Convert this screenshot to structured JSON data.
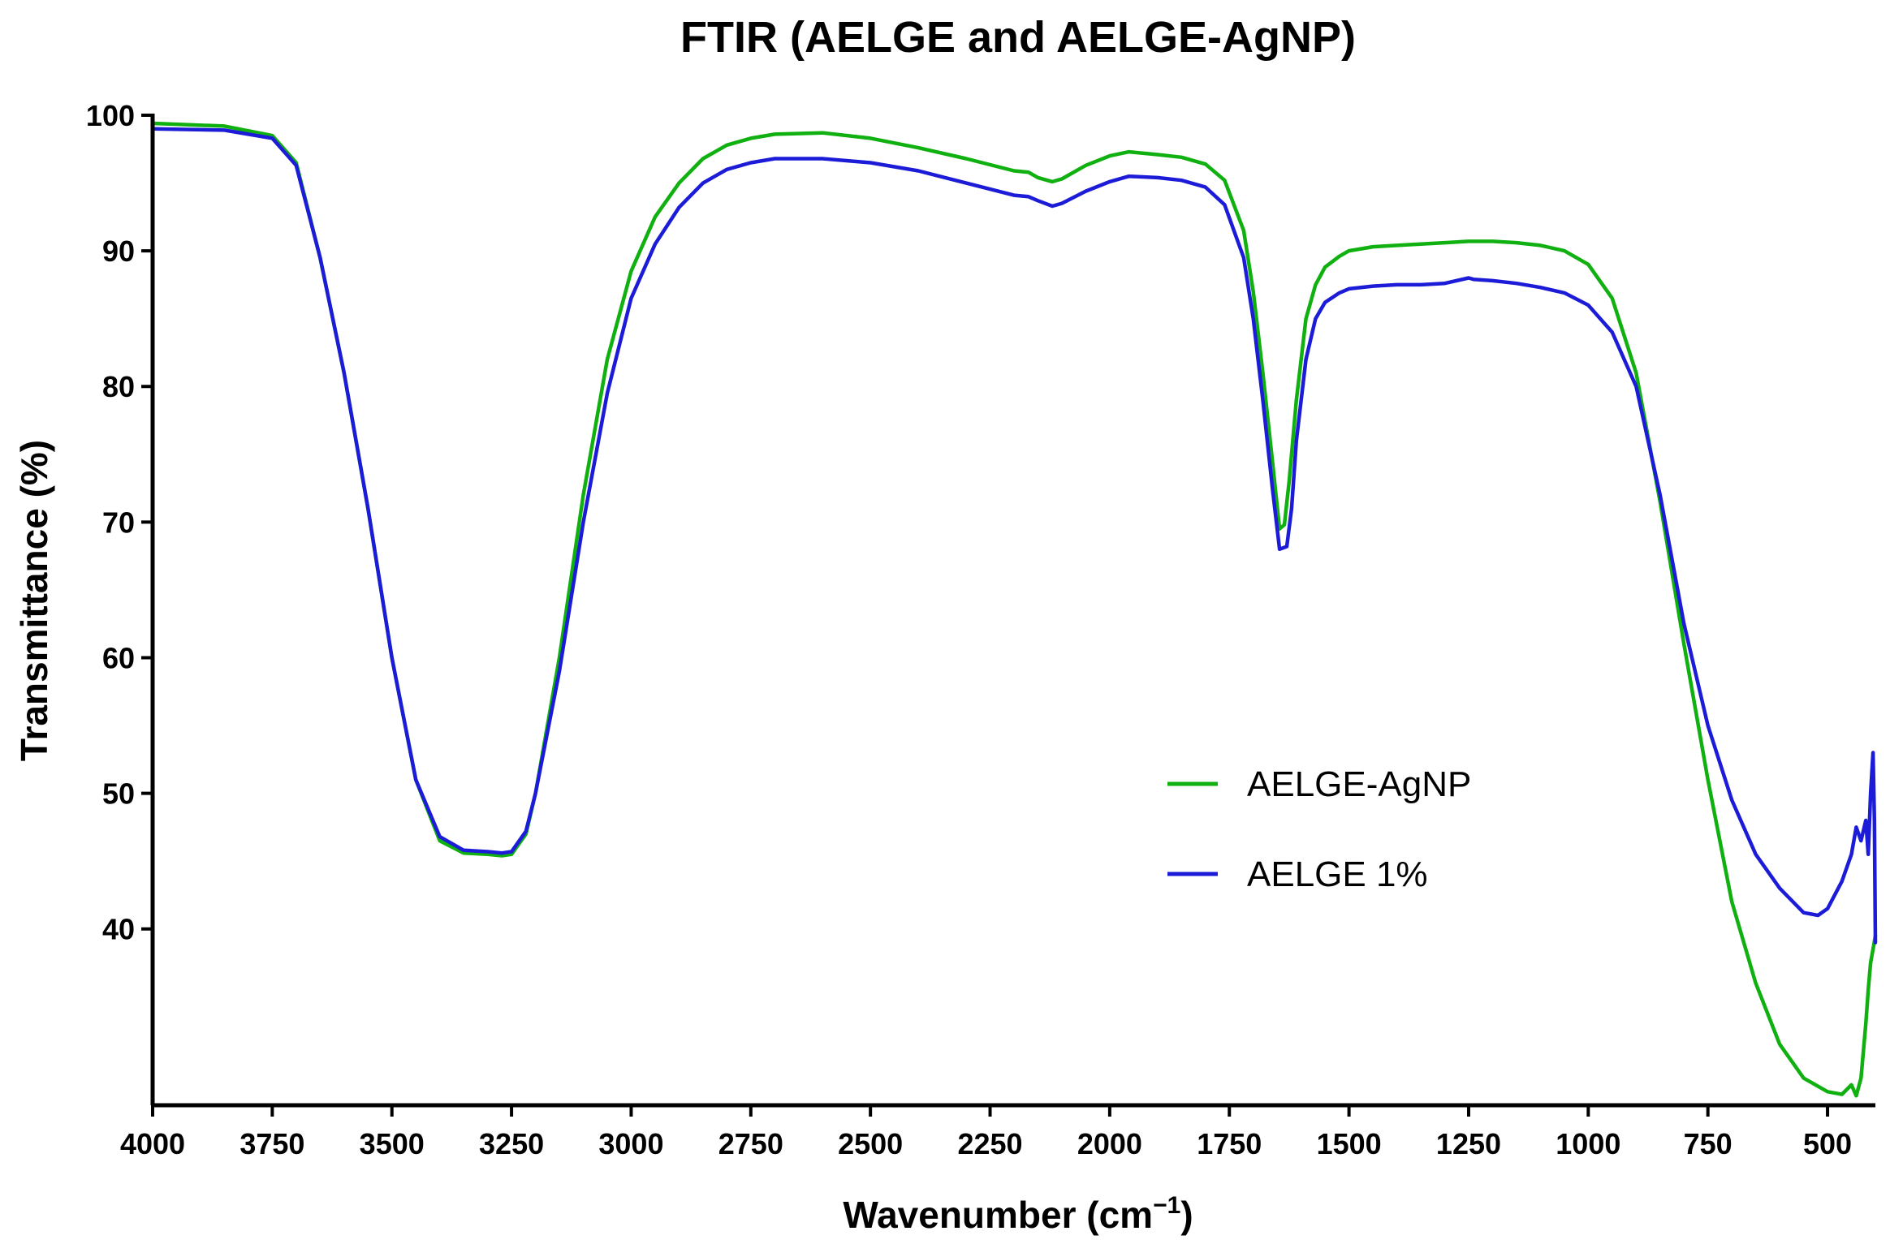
{
  "chart_data": {
    "type": "line",
    "title": "FTIR (AELGE and AELGE-AgNP)",
    "xlabel": "Wavenumber (cm",
    "xlabel_sup": "−1",
    "xlabel_close": ")",
    "ylabel": "Transmittance (%)",
    "xlim": [
      4000,
      400
    ],
    "ylim": [
      27,
      100
    ],
    "x_reversed": true,
    "grid": false,
    "legend_position": "right-middle",
    "x_ticks": [
      4000,
      3750,
      3500,
      3250,
      3000,
      2750,
      2500,
      2250,
      2000,
      1750,
      1500,
      1250,
      1000,
      750,
      500
    ],
    "x_tick_labels": [
      "4000",
      "3750",
      "3500",
      "3250",
      "3000",
      "2750",
      "2500",
      "2250",
      "2000",
      "1750",
      "1500",
      "1250",
      "1000",
      "750",
      "500"
    ],
    "y_ticks": [
      40,
      50,
      60,
      70,
      80,
      90,
      100
    ],
    "y_tick_labels": [
      "40",
      "50",
      "60",
      "70",
      "80",
      "90",
      "100"
    ],
    "series": [
      {
        "name": "AELGE-AgNP",
        "color": "#10b010",
        "x": [
          4000,
          3850,
          3750,
          3700,
          3650,
          3600,
          3550,
          3500,
          3450,
          3400,
          3350,
          3300,
          3270,
          3250,
          3220,
          3200,
          3150,
          3100,
          3050,
          3000,
          2950,
          2900,
          2850,
          2800,
          2750,
          2700,
          2600,
          2500,
          2400,
          2300,
          2200,
          2170,
          2150,
          2120,
          2100,
          2050,
          2000,
          1960,
          1900,
          1850,
          1800,
          1760,
          1720,
          1700,
          1680,
          1660,
          1645,
          1635,
          1625,
          1610,
          1590,
          1570,
          1550,
          1520,
          1500,
          1450,
          1400,
          1350,
          1300,
          1250,
          1200,
          1150,
          1100,
          1050,
          1000,
          950,
          900,
          850,
          800,
          750,
          700,
          650,
          600,
          550,
          500,
          470,
          450,
          440,
          430,
          420,
          415,
          410,
          405,
          400
        ],
        "y": [
          99.4,
          99.2,
          98.5,
          96.5,
          89.5,
          81,
          71,
          60,
          51,
          46.5,
          45.6,
          45.5,
          45.4,
          45.5,
          47,
          50,
          60,
          72,
          82,
          88.5,
          92.5,
          95,
          96.8,
          97.8,
          98.3,
          98.6,
          98.7,
          98.3,
          97.6,
          96.8,
          95.9,
          95.8,
          95.4,
          95.1,
          95.3,
          96.3,
          97.0,
          97.3,
          97.1,
          96.9,
          96.4,
          95.2,
          91.5,
          87,
          81,
          74.5,
          69.5,
          69.8,
          73,
          79,
          85,
          87.5,
          88.8,
          89.6,
          90.0,
          90.3,
          90.4,
          90.5,
          90.6,
          90.7,
          90.7,
          90.6,
          90.4,
          90.0,
          89.0,
          86.5,
          81,
          71.5,
          61,
          51,
          42,
          36,
          31.5,
          29,
          28,
          27.8,
          28.5,
          27.7,
          29,
          33,
          35.5,
          37.5,
          38.5,
          39.5
        ]
      },
      {
        "name": "AELGE 1%",
        "color": "#1c1cd8",
        "x": [
          4000,
          3850,
          3750,
          3700,
          3650,
          3600,
          3550,
          3500,
          3450,
          3400,
          3350,
          3300,
          3270,
          3250,
          3220,
          3200,
          3150,
          3100,
          3050,
          3000,
          2950,
          2900,
          2850,
          2800,
          2750,
          2700,
          2600,
          2500,
          2400,
          2300,
          2200,
          2170,
          2150,
          2120,
          2100,
          2050,
          2000,
          1960,
          1900,
          1850,
          1800,
          1760,
          1720,
          1700,
          1680,
          1660,
          1645,
          1630,
          1620,
          1610,
          1590,
          1570,
          1550,
          1520,
          1500,
          1450,
          1400,
          1350,
          1300,
          1250,
          1240,
          1200,
          1150,
          1100,
          1050,
          1000,
          950,
          900,
          850,
          800,
          750,
          700,
          650,
          600,
          550,
          520,
          500,
          470,
          450,
          440,
          430,
          420,
          415,
          410,
          405,
          402,
          400
        ],
        "y": [
          99.0,
          98.9,
          98.3,
          96.3,
          89.5,
          81,
          71,
          60,
          51,
          46.8,
          45.8,
          45.7,
          45.6,
          45.7,
          47.2,
          50,
          59,
          70,
          79.5,
          86.5,
          90.5,
          93.2,
          95.0,
          96.0,
          96.5,
          96.8,
          96.8,
          96.5,
          95.9,
          95.0,
          94.1,
          94.0,
          93.7,
          93.3,
          93.5,
          94.4,
          95.1,
          95.5,
          95.4,
          95.2,
          94.7,
          93.4,
          89.5,
          85,
          79,
          72.5,
          68.0,
          68.2,
          71,
          76,
          82,
          85,
          86.2,
          86.9,
          87.2,
          87.4,
          87.5,
          87.5,
          87.6,
          88.0,
          87.9,
          87.8,
          87.6,
          87.3,
          86.9,
          86.0,
          84.0,
          80,
          72,
          62.5,
          55,
          49.5,
          45.5,
          43,
          41.2,
          41.0,
          41.5,
          43.5,
          45.5,
          47.5,
          46.5,
          48,
          45.5,
          50,
          53,
          48,
          39
        ]
      }
    ]
  }
}
